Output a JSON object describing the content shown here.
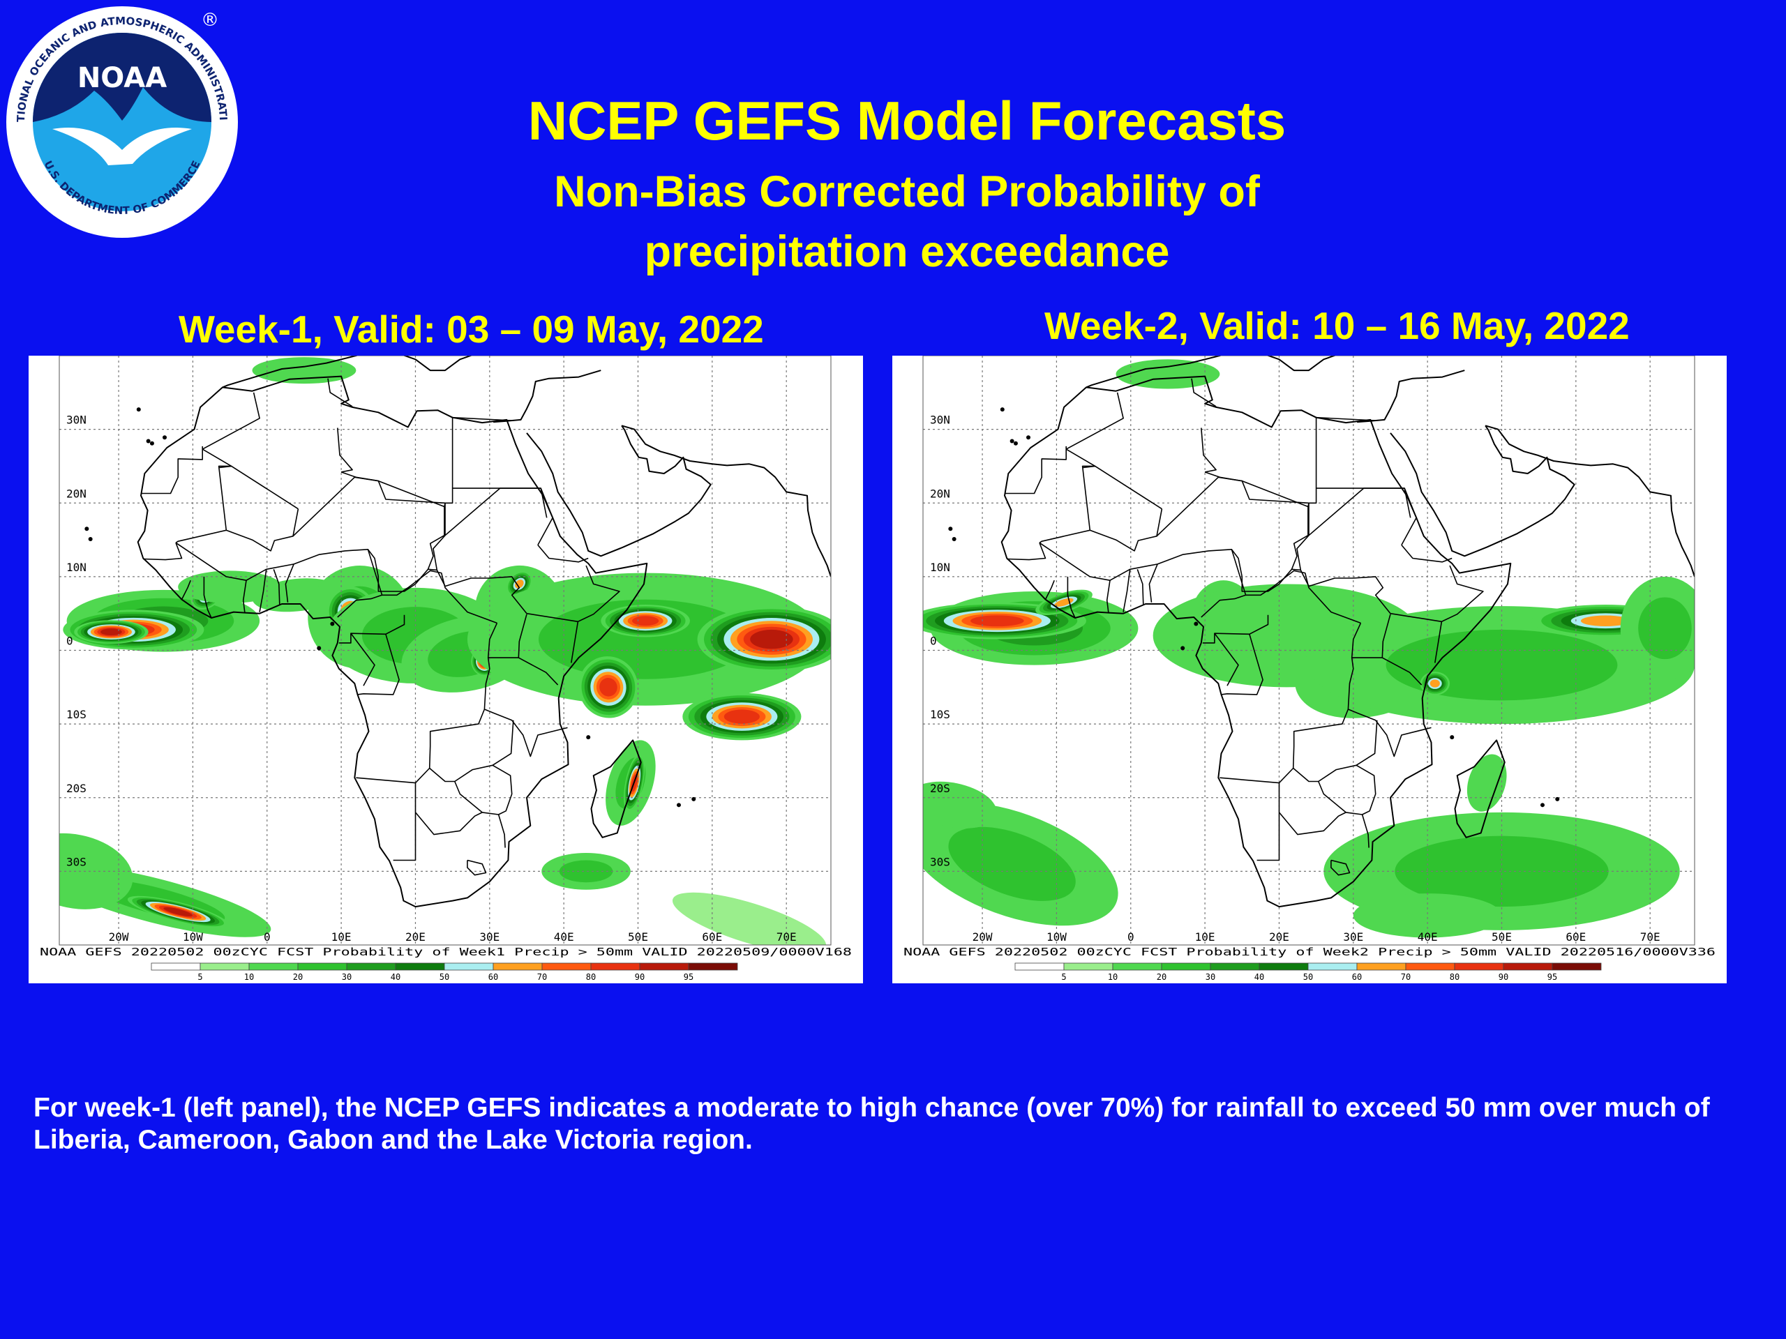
{
  "logo": {
    "wordmark": "NOAA",
    "ring_top": "NATIONAL OCEANIC AND ATMOSPHERIC ADMINISTRATION",
    "ring_bottom": "U.S. DEPARTMENT OF COMMERCE",
    "registered_mark": "®",
    "icon": "noaa-seagull-emblem",
    "colors": {
      "ring": "#ffffff",
      "inner_blue": "#1fa6e8",
      "navy": "#0d2370",
      "bird": "#ffffff"
    }
  },
  "header": {
    "title": "NCEP GEFS Model Forecasts",
    "subtitle_line1": "Non-Bias Corrected Probability of",
    "subtitle_line2": "precipitation exceedance"
  },
  "panels": [
    {
      "heading": "Week-1, Valid: 03 – 09 May, 2022",
      "map_footer": "NOAA GEFS 20220502 00zCYC FCST Probability of Week1 Precip > 50mm  VALID 20220509/0000V168"
    },
    {
      "heading": "Week-2, Valid: 10 – 16 May, 2022",
      "map_footer": "NOAA GEFS 20220502 00zCYC FCST Probability of Week2 Precip > 50mm  VALID 20220516/0000V336"
    }
  ],
  "map": {
    "lat_labels": [
      "30N",
      "20N",
      "10N",
      "0",
      "10S",
      "20S",
      "30S"
    ],
    "lat_values": [
      30,
      20,
      10,
      0,
      -10,
      -20,
      -30
    ],
    "lon_labels": [
      "20W",
      "10W",
      "0",
      "10E",
      "20E",
      "30E",
      "40E",
      "50E",
      "60E",
      "70E"
    ],
    "lon_values": [
      -20,
      -10,
      0,
      10,
      20,
      30,
      40,
      50,
      60,
      70
    ],
    "lon_range": [
      -28,
      76
    ],
    "lat_range": [
      -40,
      40
    ],
    "colorbar": {
      "ticks": [
        "5",
        "10",
        "20",
        "30",
        "40",
        "50",
        "60",
        "70",
        "80",
        "90",
        "95"
      ],
      "colors": [
        "#ffffff",
        "#9aee8c",
        "#50d850",
        "#2fc22f",
        "#1f9d1f",
        "#0e7c0e",
        "#aaeef0",
        "#ffa020",
        "#ff5a10",
        "#e83210",
        "#b81a0a",
        "#7a0c06"
      ]
    }
  },
  "caption": "For week-1 (left panel), the NCEP GEFS indicates a moderate to high chance (over 70%) for rainfall to exceed 50 mm over much of Liberia, Cameroon, Gabon and the Lake Victoria region."
}
